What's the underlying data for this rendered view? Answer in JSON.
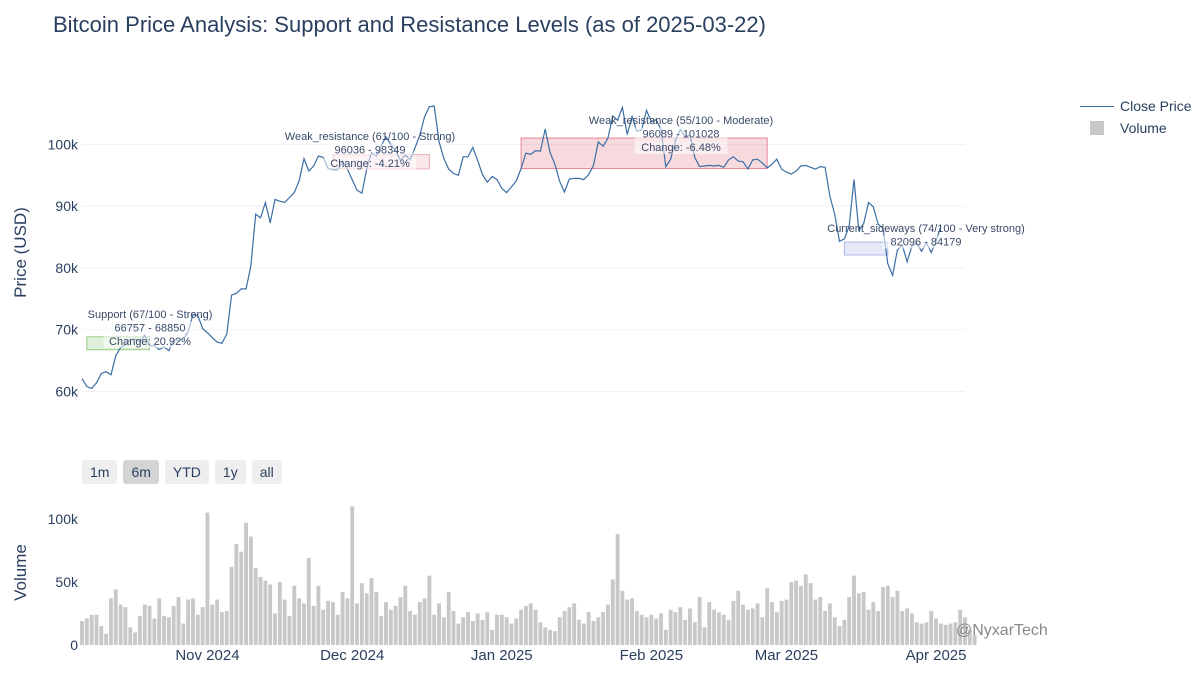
{
  "title": "Bitcoin Price Analysis: Support and Resistance Levels (as of 2025-03-22)",
  "legend": {
    "close_label": "Close Price",
    "volume_label": "Volume"
  },
  "range_selector": [
    "1m",
    "6m",
    "YTD",
    "1y",
    "all"
  ],
  "range_selector_active": "6m",
  "watermark": "@NyxarTech",
  "colors": {
    "line": "#3a6ea5",
    "volume": "#c8c8c8",
    "text": "#2a3f5f",
    "grid": "#e5ecf6"
  },
  "chart_data": {
    "type": "line",
    "x_range": [
      "2024-10-06",
      "2025-04-07"
    ],
    "xticks": [
      {
        "date": "2024-11-01",
        "label": "Nov 2024"
      },
      {
        "date": "2024-12-01",
        "label": "Dec 2024"
      },
      {
        "date": "2025-01-01",
        "label": "Jan 2025"
      },
      {
        "date": "2025-02-01",
        "label": "Feb 2025"
      },
      {
        "date": "2025-03-01",
        "label": "Mar 2025"
      },
      {
        "date": "2025-04-01",
        "label": "Apr 2025"
      }
    ],
    "price": {
      "ylabel": "Price (USD)",
      "ylim": [
        57000,
        108000
      ],
      "yticks": [
        {
          "v": 60000,
          "label": "60k"
        },
        {
          "v": 70000,
          "label": "70k"
        },
        {
          "v": 80000,
          "label": "80k"
        },
        {
          "v": 90000,
          "label": "90k"
        },
        {
          "v": 100000,
          "label": "100k"
        }
      ],
      "start": "2024-10-06",
      "close": [
        62100,
        60800,
        60500,
        61400,
        62900,
        63200,
        62700,
        65800,
        67100,
        67600,
        68400,
        68500,
        68000,
        69100,
        67400,
        67400,
        66800,
        67200,
        66600,
        68400,
        68200,
        68500,
        69700,
        72500,
        72300,
        70200,
        69500,
        68700,
        68000,
        67800,
        69300,
        75600,
        75900,
        76600,
        76600,
        80400,
        88700,
        88100,
        90600,
        87300,
        91100,
        90800,
        90600,
        91400,
        92200,
        94100,
        97700,
        95700,
        96500,
        98100,
        97900,
        96100,
        95900,
        95900,
        97300,
        96000,
        94300,
        92600,
        92100,
        96000,
        98700,
        98100,
        99800,
        101200,
        100000,
        99000,
        97400,
        98300,
        97500,
        99400,
        101500,
        104500,
        106100,
        106200,
        100400,
        97700,
        96000,
        95300,
        95000,
        98000,
        98000,
        99500,
        97400,
        95100,
        93900,
        94800,
        94300,
        92900,
        92200,
        93100,
        94100,
        96100,
        98600,
        98400,
        99000,
        98900,
        102500,
        98700,
        96800,
        94000,
        92300,
        94400,
        94500,
        94500,
        94300,
        95100,
        96600,
        100400,
        99700,
        101000,
        104600,
        103900,
        106000,
        101600,
        104500,
        102100,
        102400,
        105500,
        103700,
        104000,
        102400,
        96400,
        97600,
        100700,
        102400,
        101300,
        101500,
        97900,
        96400,
        96500,
        96600,
        96500,
        96600,
        96300,
        97500,
        98000,
        97300,
        97200,
        96000,
        97500,
        97600,
        97000,
        96200,
        96800,
        97600,
        96000,
        95500,
        95200,
        95700,
        96500,
        96600,
        96300,
        96000,
        96400,
        96300,
        91600,
        88700,
        84300,
        84700,
        86800,
        94300,
        86100,
        87200,
        90600,
        89900,
        87100,
        86400,
        80700,
        78800,
        82900,
        83700,
        81000,
        83500,
        84000,
        82700,
        84100,
        82500,
        84300,
        86800
      ]
    },
    "volume": {
      "ylabel": "Volume",
      "ylim": [
        0,
        115000
      ],
      "yticks": [
        {
          "v": 0,
          "label": "0"
        },
        {
          "v": 50000,
          "label": "50k"
        },
        {
          "v": 100000,
          "label": "100k"
        }
      ],
      "values": [
        19000,
        21000,
        24000,
        24000,
        15000,
        9000,
        37000,
        44000,
        32000,
        30000,
        14000,
        10000,
        23000,
        32000,
        31000,
        21000,
        37000,
        23000,
        22000,
        31000,
        38000,
        17000,
        36000,
        37000,
        24000,
        30000,
        105000,
        32000,
        36000,
        26000,
        27000,
        62000,
        80000,
        74000,
        97000,
        86000,
        61000,
        54000,
        51000,
        48000,
        25000,
        50000,
        36000,
        23000,
        47000,
        37000,
        33000,
        69000,
        31000,
        47000,
        28000,
        35000,
        34000,
        24000,
        42000,
        37000,
        110000,
        33000,
        49000,
        41000,
        53000,
        42000,
        23000,
        34000,
        28000,
        31000,
        38000,
        47000,
        27000,
        24000,
        34000,
        37000,
        55000,
        24000,
        33000,
        22000,
        42000,
        27000,
        17000,
        22000,
        26000,
        19000,
        25000,
        20000,
        26000,
        12000,
        24000,
        24000,
        22000,
        17000,
        21000,
        28000,
        31000,
        33000,
        28000,
        18000,
        14000,
        12000,
        11000,
        22000,
        27000,
        30000,
        33000,
        20000,
        17000,
        26000,
        19000,
        22000,
        26000,
        32000,
        52000,
        88000,
        43000,
        36000,
        37000,
        27000,
        24000,
        22000,
        24000,
        21000,
        25000,
        12000,
        28000,
        26000,
        30000,
        20000,
        29000,
        18000,
        38000,
        14000,
        34000,
        28000,
        26000,
        24000,
        20000,
        35000,
        43000,
        32000,
        28000,
        29000,
        33000,
        22000,
        45000,
        34000,
        26000,
        35000,
        36000,
        50000,
        51000,
        47000,
        56000,
        49000,
        36000,
        38000,
        27000,
        33000,
        22000,
        15000,
        20000,
        38000,
        55000,
        41000,
        42000,
        28000,
        34000,
        27000,
        46000,
        47000,
        38000,
        43000,
        27000,
        29000,
        25000,
        18000,
        17000,
        18000,
        27000,
        21000,
        17000,
        16000,
        17000,
        18000,
        28000,
        22000,
        12000,
        8000
      ]
    },
    "zones": [
      {
        "label": "Support (67/100 - Strong)",
        "range": "66757 - 68850",
        "change": "Change: 20.92%",
        "low": 66757,
        "high": 68850,
        "x0": "2024-10-07",
        "x1": "2024-10-20",
        "color": "#7fbf6a"
      },
      {
        "label": "Weak_resistance (61/100 - Strong)",
        "range": "96036 - 98349",
        "change": "Change: -4.21%",
        "low": 96036,
        "high": 98349,
        "x0": "2024-11-27",
        "x1": "2024-12-17",
        "color": "#e8a0ad"
      },
      {
        "label": "Weak_resistance (55/100 - Moderate)",
        "range": "96089 - 101028",
        "change": "Change: -6.48%",
        "low": 96089,
        "high": 101028,
        "x0": "2025-01-05",
        "x1": "2025-02-25",
        "color": "#e06b7d"
      },
      {
        "label": "Current_sideways (74/100 - Very strong)",
        "range": "82096 - 84179",
        "change": "",
        "low": 82096,
        "high": 84179,
        "x0": "2025-03-13",
        "x1": "2025-03-22",
        "color": "#9aa9e0"
      }
    ]
  }
}
